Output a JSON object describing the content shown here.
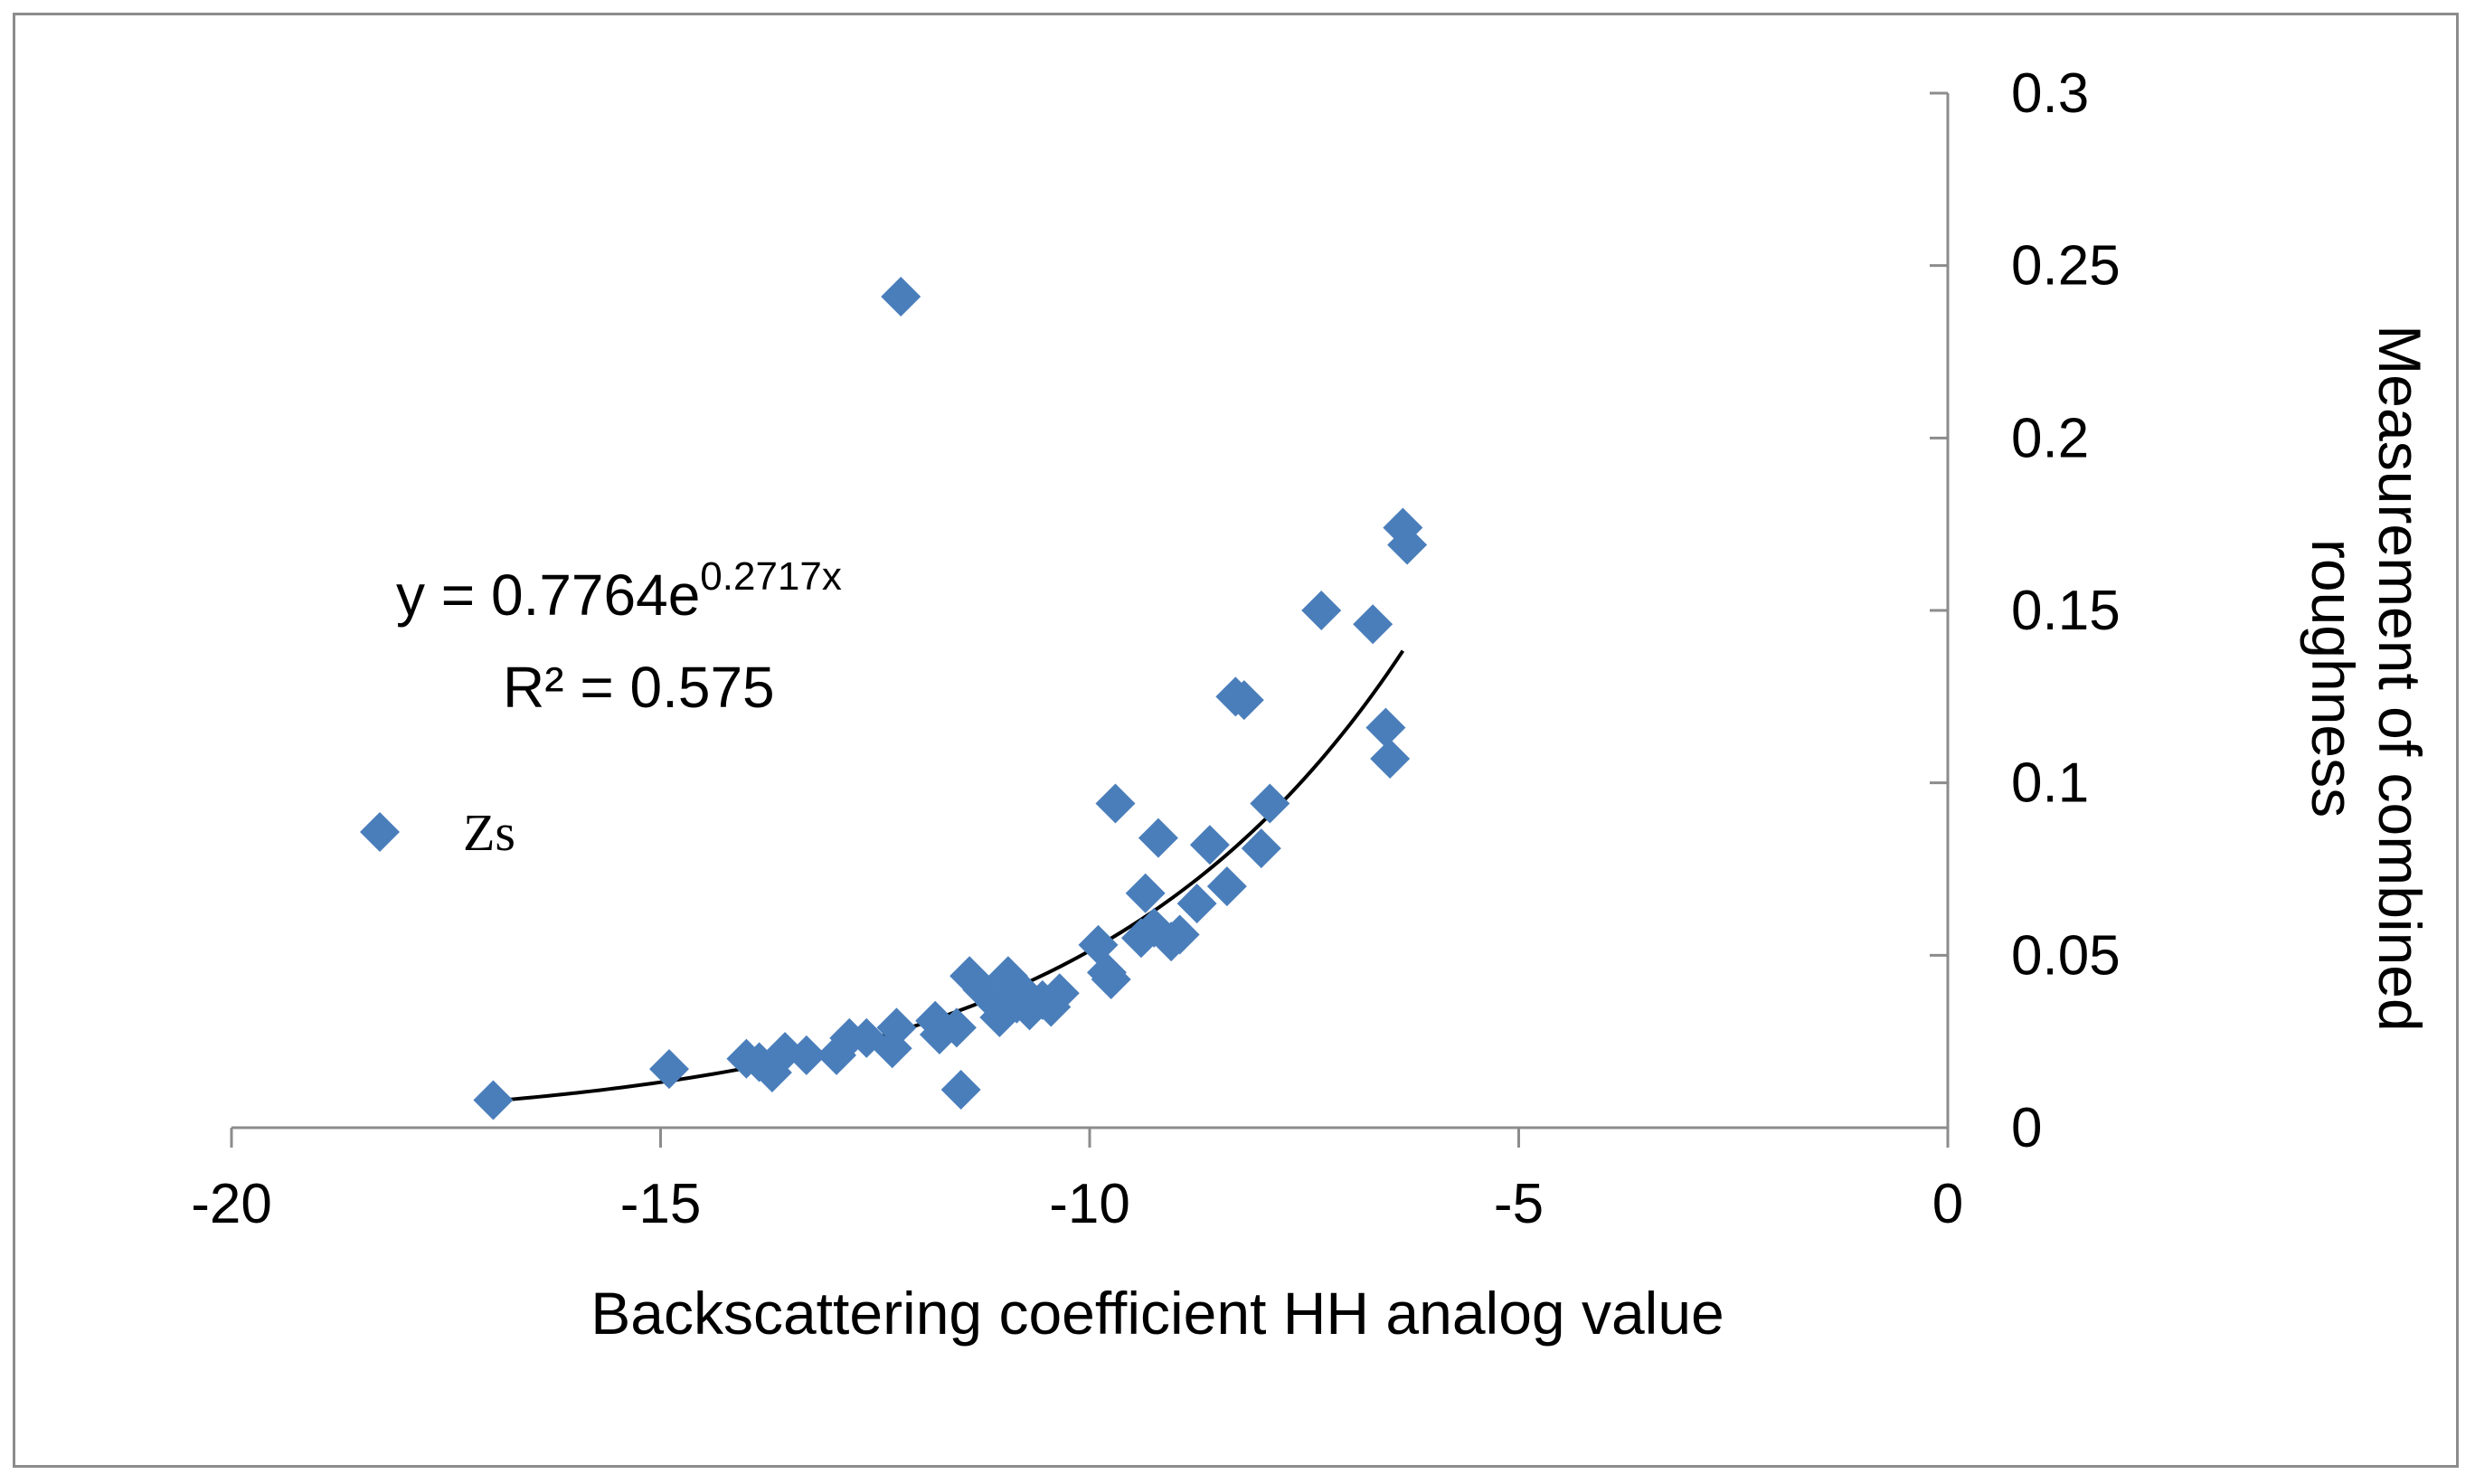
{
  "chart_data": {
    "type": "scatter",
    "title": "",
    "xlabel": "Backscattering coefficient HH analog value",
    "ylabel_lines": [
      "Measurement of combined",
      "roughness"
    ],
    "xlim": [
      -20,
      0
    ],
    "ylim": [
      0,
      0.3
    ],
    "x_ticks": [
      -20,
      -15,
      -10,
      -5,
      0
    ],
    "y_ticks": [
      0,
      0.05,
      0.1,
      0.15,
      0.2,
      0.25,
      0.3
    ],
    "x_tick_labels": [
      "-20",
      "-15",
      "-10",
      "-5",
      "0"
    ],
    "y_tick_labels": [
      "0",
      "0.05",
      "0.1",
      "0.15",
      "0.2",
      "0.25",
      "0.3"
    ],
    "y_axis_side": "right",
    "grid": false,
    "legend": {
      "position": "left",
      "entries": [
        "Zs"
      ]
    },
    "colors": {
      "marker": "#4a7ebb",
      "trendline": "#000000",
      "axis": "#8c8c8c"
    },
    "series": [
      {
        "name": "Zs",
        "marker": "diamond",
        "points": [
          [
            -16.95,
            0.008
          ],
          [
            -14.9,
            0.017
          ],
          [
            -14.0,
            0.02
          ],
          [
            -13.85,
            0.019
          ],
          [
            -13.7,
            0.016
          ],
          [
            -13.55,
            0.022
          ],
          [
            -13.3,
            0.021
          ],
          [
            -12.95,
            0.021
          ],
          [
            -12.8,
            0.026
          ],
          [
            -12.6,
            0.026
          ],
          [
            -12.3,
            0.023
          ],
          [
            -12.25,
            0.029
          ],
          [
            -12.2,
            0.241
          ],
          [
            -11.8,
            0.031
          ],
          [
            -11.75,
            0.027
          ],
          [
            -11.55,
            0.029
          ],
          [
            -11.5,
            0.011
          ],
          [
            -11.4,
            0.044
          ],
          [
            -11.25,
            0.04
          ],
          [
            -11.1,
            0.036
          ],
          [
            -11.05,
            0.032
          ],
          [
            -10.95,
            0.044
          ],
          [
            -10.85,
            0.036
          ],
          [
            -10.8,
            0.04
          ],
          [
            -10.7,
            0.034
          ],
          [
            -10.55,
            0.037
          ],
          [
            -10.45,
            0.035
          ],
          [
            -10.35,
            0.039
          ],
          [
            -9.9,
            0.053
          ],
          [
            -9.8,
            0.045
          ],
          [
            -9.75,
            0.043
          ],
          [
            -9.7,
            0.094
          ],
          [
            -9.4,
            0.055
          ],
          [
            -9.35,
            0.068
          ],
          [
            -9.25,
            0.058
          ],
          [
            -9.2,
            0.084
          ],
          [
            -9.05,
            0.054
          ],
          [
            -8.95,
            0.056
          ],
          [
            -8.75,
            0.065
          ],
          [
            -8.6,
            0.082
          ],
          [
            -8.4,
            0.07
          ],
          [
            -8.3,
            0.125
          ],
          [
            -8.2,
            0.124
          ],
          [
            -8.0,
            0.081
          ],
          [
            -7.9,
            0.094
          ],
          [
            -7.3,
            0.15
          ],
          [
            -6.7,
            0.146
          ],
          [
            -6.55,
            0.116
          ],
          [
            -6.5,
            0.107
          ],
          [
            -6.35,
            0.174
          ],
          [
            -6.3,
            0.169
          ]
        ]
      }
    ],
    "trendline": {
      "type": "exponential",
      "a": 0.7764,
      "b": 0.2717,
      "x_range": [
        -16.95,
        -6.35
      ],
      "equation_parts": {
        "lhs": "y = 0.7764e",
        "exponent": "0.2717x"
      },
      "r_squared_label": "R² = 0.575"
    }
  }
}
